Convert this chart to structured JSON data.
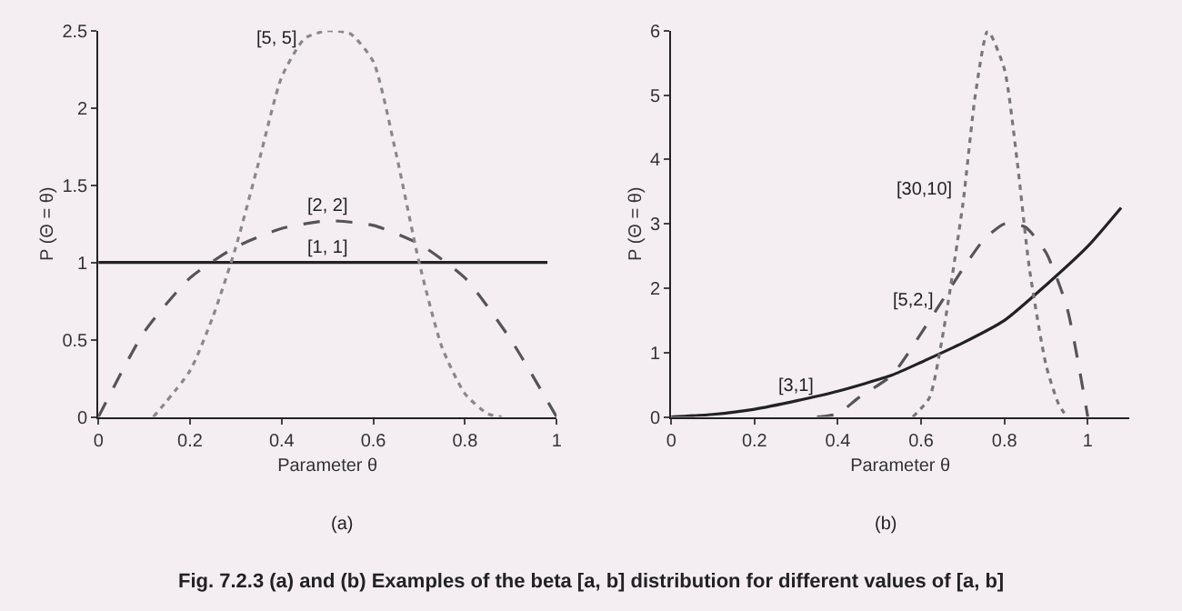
{
  "chart_data": [
    {
      "type": "line",
      "xlabel": "Parameter θ",
      "ylabel": "P (Θ = θ)",
      "xlim": [
        0,
        1
      ],
      "ylim": [
        0,
        2.5
      ],
      "xticks": [
        0,
        0.2,
        0.4,
        0.6,
        0.8,
        1
      ],
      "yticks": [
        0,
        0.5,
        1,
        1.5,
        2,
        2.5
      ],
      "grid": false,
      "marker": "none",
      "series": [
        {
          "color": "#222222",
          "line_style": "solid",
          "x": [
            0,
            0.98
          ],
          "values": [
            1,
            1
          ]
        },
        {
          "color": "#555555",
          "line_style": "dashed",
          "x": [
            0,
            0.1,
            0.2,
            0.3,
            0.4,
            0.5,
            0.6,
            0.7,
            0.8,
            0.9,
            1.0
          ],
          "values": [
            0,
            0.55,
            0.9,
            1.1,
            1.22,
            1.27,
            1.24,
            1.12,
            0.9,
            0.5,
            0
          ]
        },
        {
          "color": "#888888",
          "line_style": "dotted",
          "x": [
            0.12,
            0.2,
            0.25,
            0.3,
            0.35,
            0.4,
            0.45,
            0.5,
            0.55,
            0.6,
            0.65,
            0.7,
            0.75,
            0.8,
            0.85,
            0.88
          ],
          "values": [
            0,
            0.3,
            0.65,
            1.1,
            1.65,
            2.2,
            2.45,
            2.5,
            2.48,
            2.3,
            1.7,
            1.0,
            0.45,
            0.15,
            0.02,
            0
          ]
        }
      ],
      "annotations": [
        {
          "text": "[5, 5]",
          "x": 0.45,
          "y": 2.45
        },
        {
          "text": "[2, 2]",
          "x": 0.5,
          "y": 1.27
        },
        {
          "text": "[1, 1]",
          "x": 0.5,
          "y": 1
        },
        "(a)",
        "Fig. 7.2.3 (a) and (b) Examples of the beta [a, b] distribution for different values of [a, b]"
      ]
    },
    {
      "type": "line",
      "xlabel": "Parameter θ",
      "ylabel": "P (Θ = θ)",
      "xlim": [
        0,
        1.1
      ],
      "ylim": [
        0,
        6
      ],
      "xticks": [
        0,
        0.2,
        0.4,
        0.6,
        0.8,
        1
      ],
      "yticks": [
        0,
        1,
        2,
        3,
        4,
        5,
        6
      ],
      "grid": false,
      "marker": "none",
      "series": [
        {
          "color": "#222222",
          "line_style": "solid",
          "x": [
            0,
            0.1,
            0.2,
            0.3,
            0.4,
            0.53,
            0.6,
            0.7,
            0.8,
            0.9,
            1.0,
            1.08
          ],
          "values": [
            0,
            0.04,
            0.12,
            0.25,
            0.4,
            0.65,
            0.85,
            1.15,
            1.5,
            2.05,
            2.65,
            3.25
          ]
        },
        {
          "color": "#555555",
          "line_style": "dashed",
          "x": [
            0.35,
            0.4,
            0.45,
            0.53,
            0.6,
            0.65,
            0.7,
            0.75,
            0.8,
            0.85,
            0.9,
            0.95,
            1.0
          ],
          "values": [
            0,
            0.05,
            0.3,
            0.65,
            1.3,
            1.8,
            2.3,
            2.75,
            3.0,
            2.95,
            2.55,
            1.7,
            0
          ]
        },
        {
          "color": "#777777",
          "line_style": "dotted",
          "x": [
            0.58,
            0.62,
            0.65,
            0.7,
            0.73,
            0.76,
            0.8,
            0.83,
            0.86,
            0.9,
            0.93,
            0.95
          ],
          "values": [
            0,
            0.3,
            1.2,
            3.3,
            5.0,
            6.0,
            5.4,
            4.0,
            2.3,
            0.8,
            0.2,
            0
          ]
        }
      ],
      "annotations": [
        {
          "text": "[30,10]",
          "x": 0.7,
          "y": 3.3
        },
        {
          "text": "[5,2,]",
          "x": 0.65,
          "y": 1.8
        },
        {
          "text": "[3,1]",
          "x": 0.3,
          "y": 0.25
        },
        "(b)"
      ]
    }
  ]
}
